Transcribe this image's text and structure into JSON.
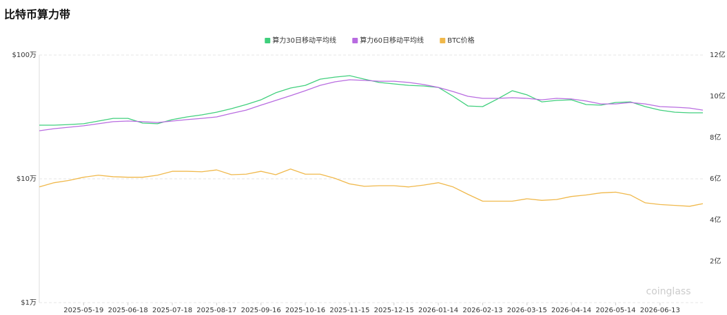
{
  "chart_data": {
    "type": "line",
    "title": "比特币算力带",
    "x": [
      "2025-04-19",
      "2025-04-29",
      "2025-05-09",
      "2025-05-19",
      "2025-05-29",
      "2025-06-08",
      "2025-06-18",
      "2025-06-28",
      "2025-07-08",
      "2025-07-18",
      "2025-07-28",
      "2025-08-07",
      "2025-08-17",
      "2025-08-27",
      "2025-09-06",
      "2025-09-16",
      "2025-09-26",
      "2025-10-06",
      "2025-10-16",
      "2025-10-26",
      "2025-11-05",
      "2025-11-15",
      "2025-11-25",
      "2025-12-05",
      "2025-12-15",
      "2025-12-25",
      "2026-01-04",
      "2026-01-14",
      "2026-01-24",
      "2026-02-03",
      "2026-02-13",
      "2026-02-23",
      "2026-03-05",
      "2026-03-15",
      "2026-03-25",
      "2026-04-04",
      "2026-04-14",
      "2026-04-24",
      "2026-05-04",
      "2026-05-14",
      "2026-05-24",
      "2026-06-03",
      "2026-06-13",
      "2026-06-23",
      "2026-07-03",
      "2026-07-12"
    ],
    "series": [
      {
        "name": "算力30日移动平均线",
        "color": "#3fcf7c",
        "axis": "y2",
        "values": [
          8.6,
          8.6,
          8.63,
          8.67,
          8.8,
          8.93,
          8.93,
          8.7,
          8.67,
          8.87,
          9.0,
          9.1,
          9.23,
          9.4,
          9.6,
          9.83,
          10.17,
          10.4,
          10.53,
          10.83,
          10.93,
          11.0,
          10.83,
          10.67,
          10.6,
          10.53,
          10.5,
          10.43,
          10.0,
          9.53,
          9.5,
          9.87,
          10.27,
          10.07,
          9.73,
          9.8,
          9.83,
          9.6,
          9.57,
          9.7,
          9.73,
          9.5,
          9.33,
          9.23,
          9.2,
          9.2
        ]
      },
      {
        "name": "算力60日移动平均线",
        "color": "#b86be0",
        "axis": "y2",
        "values": [
          8.33,
          8.43,
          8.5,
          8.57,
          8.67,
          8.77,
          8.8,
          8.77,
          8.73,
          8.8,
          8.87,
          8.93,
          9.0,
          9.17,
          9.33,
          9.57,
          9.8,
          10.03,
          10.27,
          10.53,
          10.7,
          10.8,
          10.77,
          10.73,
          10.73,
          10.67,
          10.57,
          10.43,
          10.23,
          10.0,
          9.9,
          9.9,
          9.93,
          9.9,
          9.83,
          9.9,
          9.87,
          9.77,
          9.63,
          9.63,
          9.7,
          9.63,
          9.5,
          9.47,
          9.43,
          9.33
        ]
      },
      {
        "name": "BTC价格",
        "color": "#f0b84a",
        "values": [
          8.6,
          9.3,
          9.7,
          10.3,
          10.7,
          10.4,
          10.3,
          10.3,
          10.7,
          11.5,
          11.5,
          11.4,
          11.8,
          10.8,
          10.9,
          11.5,
          10.8,
          12.0,
          10.9,
          10.9,
          10.1,
          9.1,
          8.7,
          8.8,
          8.8,
          8.6,
          8.9,
          9.3,
          8.6,
          7.5,
          6.6,
          6.6,
          6.6,
          6.9,
          6.7,
          6.8,
          7.2,
          7.4,
          7.7,
          7.8,
          7.4,
          6.4,
          6.2,
          6.1,
          6.0,
          6.3
        ]
      }
    ],
    "xlim": [
      "2025-04-19",
      "2026-07-12"
    ],
    "xticks": [
      "2025-05-19",
      "2025-06-18",
      "2025-07-18",
      "2025-08-17",
      "2025-09-16",
      "2025-10-16",
      "2025-11-15",
      "2025-12-15",
      "2026-01-14",
      "2026-02-13",
      "2026-03-15",
      "2026-04-14",
      "2026-05-14",
      "2026-06-13"
    ],
    "ylim": [
      1,
      100
    ],
    "log_y": true,
    "yticks": [
      {
        "value": 1,
        "label": "$1万"
      },
      {
        "value": 10,
        "label": "$10万"
      },
      {
        "value": 100,
        "label": "$100万"
      }
    ],
    "y2lim": [
      0,
      12
    ],
    "y2ticks": [
      {
        "value": 2,
        "label": "2亿"
      },
      {
        "value": 4,
        "label": "4亿"
      },
      {
        "value": 6,
        "label": "6亿"
      },
      {
        "value": 8,
        "label": "8亿"
      },
      {
        "value": 10,
        "label": "10亿"
      },
      {
        "value": 12,
        "label": "12亿"
      }
    ],
    "grid": true,
    "legend": "top",
    "watermark": "coinglass"
  }
}
